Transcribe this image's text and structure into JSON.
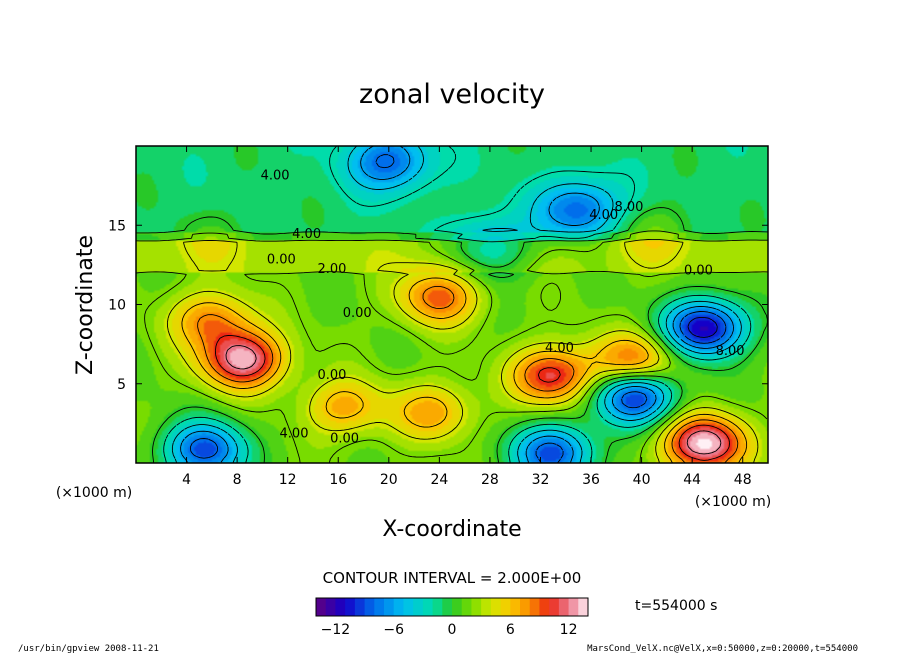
{
  "chart_data": {
    "type": "heatmap",
    "title": "zonal velocity",
    "xlabel": "X-coordinate",
    "ylabel": "Z-coordinate",
    "x_unit_label": "(×1000 m)",
    "z_unit_label": "(×1000 m)",
    "x_ticks": [
      "4",
      "8",
      "12",
      "16",
      "20",
      "24",
      "28",
      "32",
      "36",
      "40",
      "44",
      "48"
    ],
    "y_ticks": [
      "5",
      "10",
      "15"
    ],
    "xlim": [
      0,
      50
    ],
    "ylim": [
      0,
      20
    ],
    "contour_interval_text": "CONTOUR INTERVAL = 2.000E+00",
    "time_text": "t=554000 s",
    "colorbar_ticks": [
      "−12",
      "−6",
      "0",
      "6",
      "12"
    ],
    "colorbar_range": [
      -14,
      14
    ],
    "contour_labels": [
      {
        "text": "4.00",
        "x": 11,
        "z": 17.9
      },
      {
        "text": "4.00",
        "x": 13.5,
        "z": 14.2
      },
      {
        "text": "0.00",
        "x": 11.5,
        "z": 12.6
      },
      {
        "text": "2.00",
        "x": 15.5,
        "z": 12.0
      },
      {
        "text": "0.00",
        "x": 17.5,
        "z": 9.2
      },
      {
        "text": "0.00",
        "x": 15.5,
        "z": 5.3
      },
      {
        "text": "4.00",
        "x": 12.5,
        "z": 1.6
      },
      {
        "text": "0.00",
        "x": 16.5,
        "z": 1.3
      },
      {
        "text": "4.00",
        "x": 33.5,
        "z": 7.0
      },
      {
        "text": "4.00",
        "x": 37,
        "z": 15.4
      },
      {
        "text": "8.00",
        "x": 39,
        "z": 15.9
      },
      {
        "text": "0.00",
        "x": 44.5,
        "z": 11.9
      },
      {
        "text": "8.00",
        "x": 47,
        "z": 6.8
      }
    ],
    "field_features": [
      {
        "kind": "max",
        "x": 8.5,
        "z": 6.5,
        "value": 13
      },
      {
        "kind": "max",
        "x": 33,
        "z": 5.5,
        "value": 11
      },
      {
        "kind": "max",
        "x": 24,
        "z": 10.5,
        "value": 9
      },
      {
        "kind": "max",
        "x": 23.5,
        "z": 3.2,
        "value": 7
      },
      {
        "kind": "max",
        "x": 16.5,
        "z": 3.5,
        "value": 7
      },
      {
        "kind": "max",
        "x": 6,
        "z": 9,
        "value": 8
      },
      {
        "kind": "max",
        "x": 39.5,
        "z": 6.3,
        "value": 10
      },
      {
        "kind": "max",
        "x": 45,
        "z": 1.2,
        "value": 14
      },
      {
        "kind": "min",
        "x": 45,
        "z": 8.5,
        "value": -12
      },
      {
        "kind": "min",
        "x": 39.5,
        "z": 4.3,
        "value": -11
      },
      {
        "kind": "min",
        "x": 33,
        "z": 0.6,
        "value": -9
      },
      {
        "kind": "min",
        "x": 5.5,
        "z": 0.8,
        "value": -9
      },
      {
        "kind": "min",
        "x": 20,
        "z": 19,
        "value": -6
      },
      {
        "kind": "min",
        "x": 35,
        "z": 16,
        "value": -6
      },
      {
        "kind": "min",
        "x": 28,
        "z": 13.5,
        "value": -4
      },
      {
        "kind": "min",
        "x": 6,
        "z": 14,
        "value": 3
      },
      {
        "kind": "max",
        "x": 41,
        "z": 14.5,
        "value": 4
      }
    ]
  },
  "footer": {
    "left": "/usr/bin/gpview   2008-11-21",
    "right": "MarsCond_VelX.nc@VelX,x=0:50000,z=0:20000,t=554000"
  }
}
